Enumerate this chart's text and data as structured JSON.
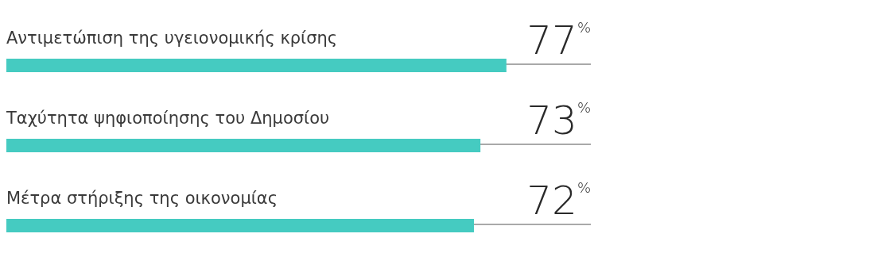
{
  "chart_data": {
    "type": "bar",
    "orientation": "horizontal",
    "categories": [
      "Αντιμετώπιση της υγειονομικής κρίσης",
      "Ταχύτητα ψηφιοποίησης του Δημοσίου",
      "Μέτρα στήριξης της οικονομίας"
    ],
    "values": [
      77,
      73,
      72
    ],
    "color": "#45cbc1",
    "xlim": [
      0,
      90
    ],
    "value_labels": [
      "77$^{%}$",
      "73$^{%}$",
      "72$^{%}$"
    ]
  }
}
